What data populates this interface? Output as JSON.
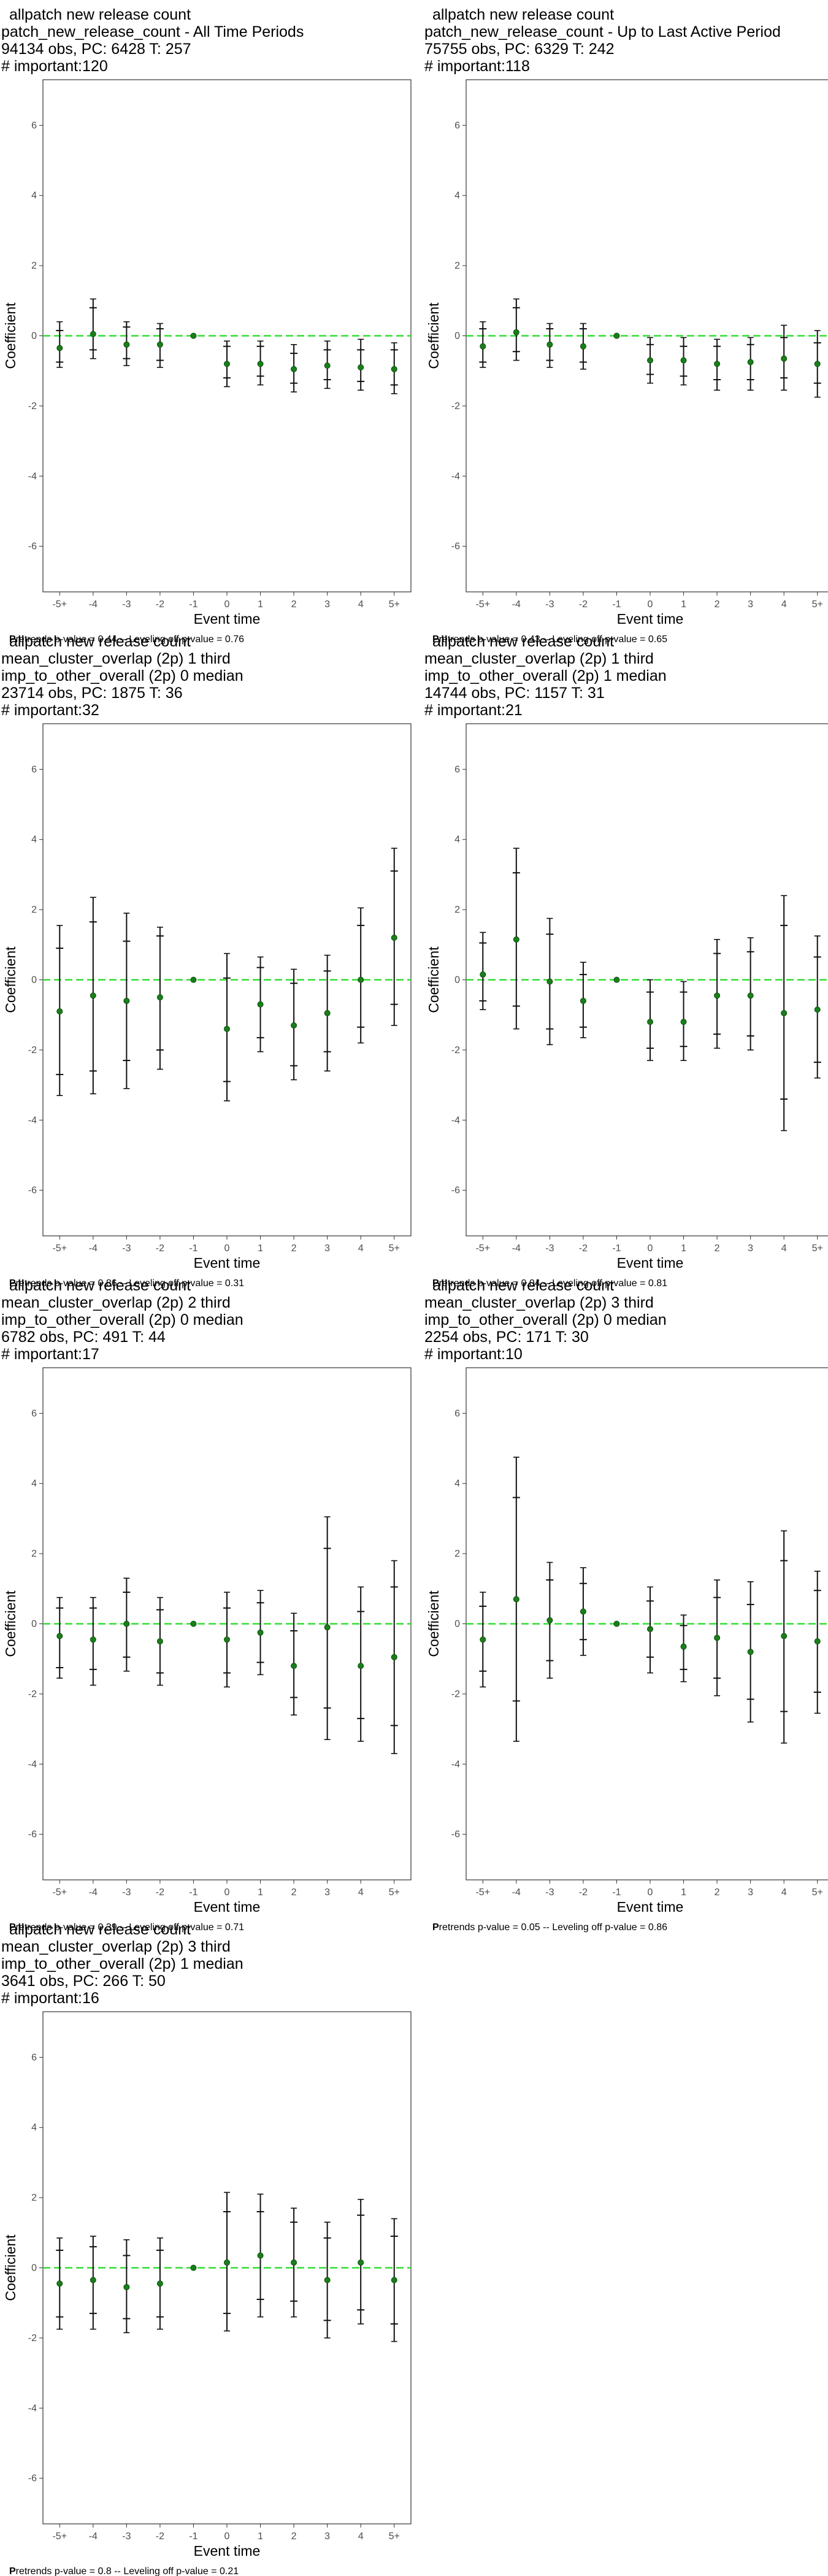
{
  "chart_data": [
    {
      "type": "scatter",
      "title": [
        "allpatch new release count",
        "patch_new_release_count - All Time Periods",
        "94134 obs, PC: 6428 T: 257",
        "# important:120"
      ],
      "xlabel": "Event time",
      "ylabel": "Coefficient",
      "categories": [
        "-5+",
        "-4",
        "-3",
        "-2",
        "-1",
        "0",
        "1",
        "2",
        "3",
        "4",
        "5+"
      ],
      "yticks": [
        "-6",
        "-4",
        "-2",
        "0",
        "2",
        "4",
        "6"
      ],
      "ylim": [
        -7.3,
        7.3
      ],
      "reference_line": 0,
      "values": [
        -0.35,
        0.05,
        -0.25,
        -0.25,
        0.0,
        -0.8,
        -0.8,
        -0.95,
        -0.85,
        -0.9,
        -0.95
      ],
      "ci_inner": [
        [
          -0.75,
          0.15
        ],
        [
          -0.4,
          0.8
        ],
        [
          -0.65,
          0.25
        ],
        [
          -0.7,
          0.2
        ],
        [
          0,
          0
        ],
        [
          -1.2,
          -0.3
        ],
        [
          -1.15,
          -0.3
        ],
        [
          -1.35,
          -0.5
        ],
        [
          -1.25,
          -0.4
        ],
        [
          -1.3,
          -0.4
        ],
        [
          -1.4,
          -0.4
        ]
      ],
      "ci_outer": [
        [
          -0.9,
          0.4
        ],
        [
          -0.65,
          1.05
        ],
        [
          -0.85,
          0.4
        ],
        [
          -0.9,
          0.35
        ],
        [
          0,
          0
        ],
        [
          -1.45,
          -0.15
        ],
        [
          -1.4,
          -0.15
        ],
        [
          -1.6,
          -0.25
        ],
        [
          -1.5,
          -0.15
        ],
        [
          -1.55,
          -0.1
        ],
        [
          -1.65,
          -0.2
        ]
      ],
      "caption_bold": "P",
      "caption": "retrends p-value = 0.44 -- Leveling off p-value = 0.76"
    },
    {
      "type": "scatter",
      "title": [
        "allpatch new release count",
        "patch_new_release_count - Up to Last Active Period",
        "75755 obs, PC: 6329 T: 242",
        "# important:118"
      ],
      "xlabel": "Event time",
      "ylabel": "Coefficient",
      "categories": [
        "-5+",
        "-4",
        "-3",
        "-2",
        "-1",
        "0",
        "1",
        "2",
        "3",
        "4",
        "5+"
      ],
      "yticks": [
        "-6",
        "-4",
        "-2",
        "0",
        "2",
        "4",
        "6"
      ],
      "ylim": [
        -7.3,
        7.3
      ],
      "reference_line": 0,
      "values": [
        -0.3,
        0.1,
        -0.25,
        -0.3,
        0.0,
        -0.7,
        -0.7,
        -0.8,
        -0.75,
        -0.65,
        -0.8
      ],
      "ci_inner": [
        [
          -0.75,
          0.2
        ],
        [
          -0.45,
          0.8
        ],
        [
          -0.7,
          0.2
        ],
        [
          -0.75,
          0.2
        ],
        [
          0,
          0
        ],
        [
          -1.1,
          -0.25
        ],
        [
          -1.15,
          -0.3
        ],
        [
          -1.25,
          -0.3
        ],
        [
          -1.25,
          -0.25
        ],
        [
          -1.2,
          -0.05
        ],
        [
          -1.35,
          -0.2
        ]
      ],
      "ci_outer": [
        [
          -0.9,
          0.4
        ],
        [
          -0.7,
          1.05
        ],
        [
          -0.9,
          0.35
        ],
        [
          -0.95,
          0.35
        ],
        [
          0,
          0
        ],
        [
          -1.35,
          -0.05
        ],
        [
          -1.4,
          -0.05
        ],
        [
          -1.55,
          -0.1
        ],
        [
          -1.55,
          -0.05
        ],
        [
          -1.55,
          0.3
        ],
        [
          -1.75,
          0.15
        ]
      ],
      "caption_bold": "P",
      "caption": "retrends p-value = 0.43 -- Leveling off p-value = 0.65"
    },
    {
      "type": "scatter",
      "title": [
        "allpatch new release count",
        "mean_cluster_overlap (2p) 1 third",
        "imp_to_other_overall (2p) 0 median",
        "23714 obs, PC: 1875 T: 36",
        "# important:32"
      ],
      "xlabel": "Event time",
      "ylabel": "Coefficient",
      "categories": [
        "-5+",
        "-4",
        "-3",
        "-2",
        "-1",
        "0",
        "1",
        "2",
        "3",
        "4",
        "5+"
      ],
      "yticks": [
        "-6",
        "-4",
        "-2",
        "0",
        "2",
        "4",
        "6"
      ],
      "ylim": [
        -7.3,
        7.3
      ],
      "reference_line": 0,
      "values": [
        -0.9,
        -0.45,
        -0.6,
        -0.5,
        0.0,
        -1.4,
        -0.7,
        -1.3,
        -0.95,
        0.0,
        1.2
      ],
      "ci_inner": [
        [
          -2.7,
          0.9
        ],
        [
          -2.6,
          1.65
        ],
        [
          -2.3,
          1.1
        ],
        [
          -2.0,
          1.25
        ],
        [
          0,
          0
        ],
        [
          -2.9,
          0.05
        ],
        [
          -1.65,
          0.35
        ],
        [
          -2.45,
          -0.1
        ],
        [
          -2.05,
          0.25
        ],
        [
          -1.35,
          1.55
        ],
        [
          -0.7,
          3.1
        ]
      ],
      "ci_outer": [
        [
          -3.3,
          1.55
        ],
        [
          -3.25,
          2.35
        ],
        [
          -3.1,
          1.9
        ],
        [
          -2.55,
          1.5
        ],
        [
          0,
          0
        ],
        [
          -3.45,
          0.75
        ],
        [
          -2.05,
          0.65
        ],
        [
          -2.85,
          0.3
        ],
        [
          -2.6,
          0.7
        ],
        [
          -1.8,
          2.05
        ],
        [
          -1.3,
          3.75
        ]
      ],
      "caption_bold": "P",
      "caption": "retrends p-value = 0.86 -- Leveling off p-value = 0.31"
    },
    {
      "type": "scatter",
      "title": [
        "allpatch new release count",
        "mean_cluster_overlap (2p) 1 third",
        "imp_to_other_overall (2p) 1 median",
        "14744 obs, PC: 1157 T: 31",
        "# important:21"
      ],
      "xlabel": "Event time",
      "ylabel": "Coefficient",
      "categories": [
        "-5+",
        "-4",
        "-3",
        "-2",
        "-1",
        "0",
        "1",
        "2",
        "3",
        "4",
        "5+"
      ],
      "yticks": [
        "-6",
        "-4",
        "-2",
        "0",
        "2",
        "4",
        "6"
      ],
      "ylim": [
        -7.3,
        7.3
      ],
      "reference_line": 0,
      "values": [
        0.15,
        1.15,
        -0.05,
        -0.6,
        0.0,
        -1.2,
        -1.2,
        -0.45,
        -0.45,
        -0.95,
        -0.85
      ],
      "ci_inner": [
        [
          -0.6,
          1.05
        ],
        [
          -0.75,
          3.05
        ],
        [
          -1.4,
          1.3
        ],
        [
          -1.35,
          0.15
        ],
        [
          0,
          0
        ],
        [
          -1.95,
          -0.35
        ],
        [
          -1.9,
          -0.35
        ],
        [
          -1.55,
          0.75
        ],
        [
          -1.6,
          0.8
        ],
        [
          -3.4,
          1.55
        ],
        [
          -2.35,
          0.65
        ]
      ],
      "ci_outer": [
        [
          -0.85,
          1.35
        ],
        [
          -1.4,
          3.75
        ],
        [
          -1.85,
          1.75
        ],
        [
          -1.65,
          0.5
        ],
        [
          0,
          0
        ],
        [
          -2.3,
          0.0
        ],
        [
          -2.3,
          -0.05
        ],
        [
          -1.95,
          1.15
        ],
        [
          -2.0,
          1.2
        ],
        [
          -4.3,
          2.4
        ],
        [
          -2.8,
          1.25
        ]
      ],
      "caption_bold": "P",
      "caption": "retrends p-value = 0.04 -- Leveling off p-value = 0.81"
    },
    {
      "type": "scatter",
      "title": [
        "allpatch new release count",
        "mean_cluster_overlap (2p) 2 third",
        "imp_to_other_overall (2p) 0 median",
        "6782 obs, PC: 491 T: 44",
        "# important:17"
      ],
      "xlabel": "Event time",
      "ylabel": "Coefficient",
      "categories": [
        "-5+",
        "-4",
        "-3",
        "-2",
        "-1",
        "0",
        "1",
        "2",
        "3",
        "4",
        "5+"
      ],
      "yticks": [
        "-6",
        "-4",
        "-2",
        "0",
        "2",
        "4",
        "6"
      ],
      "ylim": [
        -7.3,
        7.3
      ],
      "reference_line": 0,
      "values": [
        -0.35,
        -0.45,
        0.0,
        -0.5,
        0.0,
        -0.45,
        -0.25,
        -1.2,
        -0.1,
        -1.2,
        -0.95
      ],
      "ci_inner": [
        [
          -1.25,
          0.45
        ],
        [
          -1.3,
          0.45
        ],
        [
          -0.95,
          0.9
        ],
        [
          -1.4,
          0.4
        ],
        [
          0,
          0
        ],
        [
          -1.4,
          0.45
        ],
        [
          -1.1,
          0.6
        ],
        [
          -2.1,
          -0.2
        ],
        [
          -2.4,
          2.15
        ],
        [
          -2.7,
          0.35
        ],
        [
          -2.9,
          1.05
        ]
      ],
      "ci_outer": [
        [
          -1.55,
          0.75
        ],
        [
          -1.75,
          0.75
        ],
        [
          -1.35,
          1.3
        ],
        [
          -1.75,
          0.75
        ],
        [
          0,
          0
        ],
        [
          -1.8,
          0.9
        ],
        [
          -1.45,
          0.95
        ],
        [
          -2.6,
          0.3
        ],
        [
          -3.3,
          3.05
        ],
        [
          -3.35,
          1.05
        ],
        [
          -3.7,
          1.8
        ]
      ],
      "caption_bold": "P",
      "caption": "retrends p-value = 0.39 -- Leveling off p-value = 0.71"
    },
    {
      "type": "scatter",
      "title": [
        "allpatch new release count",
        "mean_cluster_overlap (2p) 3 third",
        "imp_to_other_overall (2p) 0 median",
        "2254 obs, PC: 171 T: 30",
        "# important:10"
      ],
      "xlabel": "Event time",
      "ylabel": "Coefficient",
      "categories": [
        "-5+",
        "-4",
        "-3",
        "-2",
        "-1",
        "0",
        "1",
        "2",
        "3",
        "4",
        "5+"
      ],
      "yticks": [
        "-6",
        "-4",
        "-2",
        "0",
        "2",
        "4",
        "6"
      ],
      "ylim": [
        -7.3,
        7.3
      ],
      "reference_line": 0,
      "values": [
        -0.45,
        0.7,
        0.1,
        0.35,
        0.0,
        -0.15,
        -0.65,
        -0.4,
        -0.8,
        -0.35,
        -0.5
      ],
      "ci_inner": [
        [
          -1.35,
          0.5
        ],
        [
          -2.2,
          3.6
        ],
        [
          -1.05,
          1.25
        ],
        [
          -0.45,
          1.15
        ],
        [
          0,
          0
        ],
        [
          -0.95,
          0.65
        ],
        [
          -1.3,
          -0.05
        ],
        [
          -1.55,
          0.75
        ],
        [
          -2.15,
          0.55
        ],
        [
          -2.5,
          1.8
        ],
        [
          -1.95,
          0.95
        ]
      ],
      "ci_outer": [
        [
          -1.8,
          0.9
        ],
        [
          -3.35,
          4.75
        ],
        [
          -1.55,
          1.75
        ],
        [
          -0.9,
          1.6
        ],
        [
          0,
          0
        ],
        [
          -1.4,
          1.05
        ],
        [
          -1.65,
          0.25
        ],
        [
          -2.05,
          1.25
        ],
        [
          -2.8,
          1.2
        ],
        [
          -3.4,
          2.65
        ],
        [
          -2.55,
          1.5
        ]
      ],
      "caption_bold": "P",
      "caption": "retrends p-value = 0.05 -- Leveling off p-value = 0.86"
    },
    {
      "type": "scatter",
      "title": [
        "allpatch new release count",
        "mean_cluster_overlap (2p) 3 third",
        "imp_to_other_overall (2p) 1 median",
        "3641 obs, PC: 266 T: 50",
        "# important:16"
      ],
      "xlabel": "Event time",
      "ylabel": "Coefficient",
      "categories": [
        "-5+",
        "-4",
        "-3",
        "-2",
        "-1",
        "0",
        "1",
        "2",
        "3",
        "4",
        "5+"
      ],
      "yticks": [
        "-6",
        "-4",
        "-2",
        "0",
        "2",
        "4",
        "6"
      ],
      "ylim": [
        -7.3,
        7.3
      ],
      "reference_line": 0,
      "values": [
        -0.45,
        -0.35,
        -0.55,
        -0.45,
        0.0,
        0.15,
        0.35,
        0.15,
        -0.35,
        0.15,
        -0.35
      ],
      "ci_inner": [
        [
          -1.4,
          0.5
        ],
        [
          -1.3,
          0.6
        ],
        [
          -1.45,
          0.35
        ],
        [
          -1.4,
          0.5
        ],
        [
          0,
          0
        ],
        [
          -1.3,
          1.6
        ],
        [
          -0.9,
          1.6
        ],
        [
          -0.95,
          1.3
        ],
        [
          -1.5,
          0.85
        ],
        [
          -1.2,
          1.5
        ],
        [
          -1.6,
          0.9
        ]
      ],
      "ci_outer": [
        [
          -1.75,
          0.85
        ],
        [
          -1.75,
          0.9
        ],
        [
          -1.85,
          0.8
        ],
        [
          -1.75,
          0.85
        ],
        [
          0,
          0
        ],
        [
          -1.8,
          2.15
        ],
        [
          -1.4,
          2.1
        ],
        [
          -1.4,
          1.7
        ],
        [
          -2.0,
          1.3
        ],
        [
          -1.6,
          1.95
        ],
        [
          -2.1,
          1.4
        ]
      ],
      "caption_bold": "P",
      "caption": "retrends p-value = 0.8 -- Leveling off p-value = 0.21"
    }
  ]
}
